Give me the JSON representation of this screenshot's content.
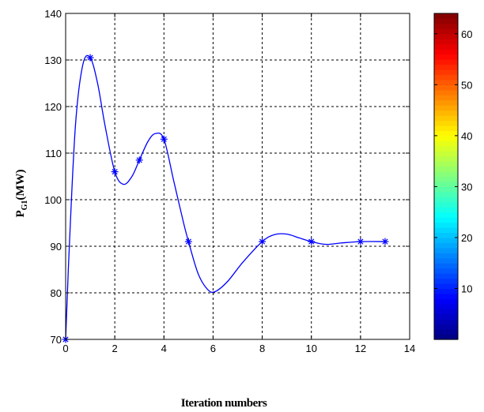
{
  "chart_data": {
    "type": "line",
    "xlabel": "Iteration numbers",
    "ylabel": {
      "main": "P",
      "sub": "G1",
      "unit": "(MW)"
    },
    "xlim": [
      0,
      14
    ],
    "ylim": [
      70,
      140
    ],
    "xticks": [
      0,
      2,
      4,
      6,
      8,
      10,
      12,
      14
    ],
    "yticks": [
      70,
      80,
      90,
      100,
      110,
      120,
      130,
      140
    ],
    "grid": true,
    "marker": "star",
    "line_color": "#0000ff",
    "series": [
      {
        "markers": [
          {
            "x": 0,
            "y": 70
          },
          {
            "x": 1,
            "y": 130.5
          },
          {
            "x": 2,
            "y": 106
          },
          {
            "x": 3,
            "y": 108.5
          },
          {
            "x": 4,
            "y": 113
          },
          {
            "x": 5,
            "y": 91
          },
          {
            "x": 8,
            "y": 91
          },
          {
            "x": 10,
            "y": 91
          },
          {
            "x": 12,
            "y": 91
          },
          {
            "x": 13,
            "y": 91
          }
        ],
        "curve": [
          {
            "x": 0,
            "y": 70
          },
          {
            "x": 0.15,
            "y": 90
          },
          {
            "x": 0.4,
            "y": 116
          },
          {
            "x": 0.7,
            "y": 129
          },
          {
            "x": 1,
            "y": 130.5
          },
          {
            "x": 1.3,
            "y": 125
          },
          {
            "x": 1.6,
            "y": 116
          },
          {
            "x": 2,
            "y": 106
          },
          {
            "x": 2.35,
            "y": 103.3
          },
          {
            "x": 2.7,
            "y": 105
          },
          {
            "x": 3,
            "y": 108.5
          },
          {
            "x": 3.35,
            "y": 112.5
          },
          {
            "x": 3.65,
            "y": 114.2
          },
          {
            "x": 4,
            "y": 113
          },
          {
            "x": 4.4,
            "y": 104
          },
          {
            "x": 4.8,
            "y": 95
          },
          {
            "x": 5,
            "y": 91
          },
          {
            "x": 5.4,
            "y": 84
          },
          {
            "x": 5.8,
            "y": 80.6
          },
          {
            "x": 6.1,
            "y": 80.3
          },
          {
            "x": 6.6,
            "y": 82.5
          },
          {
            "x": 7.2,
            "y": 86.5
          },
          {
            "x": 8,
            "y": 91
          },
          {
            "x": 8.5,
            "y": 92.5
          },
          {
            "x": 9,
            "y": 92.6
          },
          {
            "x": 9.5,
            "y": 91.8
          },
          {
            "x": 10,
            "y": 91
          },
          {
            "x": 10.6,
            "y": 90.4
          },
          {
            "x": 11.2,
            "y": 90.7
          },
          {
            "x": 12,
            "y": 91
          },
          {
            "x": 13,
            "y": 91
          }
        ]
      }
    ],
    "colorbar": {
      "range": [
        0,
        64
      ],
      "ticks": [
        10,
        20,
        30,
        40,
        50,
        60
      ],
      "colormap": "jet"
    }
  }
}
